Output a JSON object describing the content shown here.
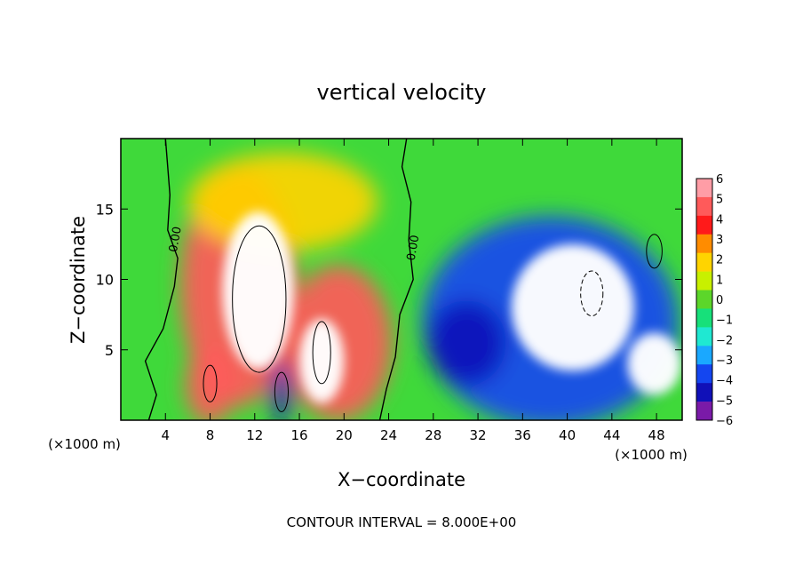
{
  "chart_data": {
    "type": "heatmap",
    "title": "vertical velocity",
    "xlabel": "X−coordinate",
    "ylabel": "Z−coordinate",
    "x_unit_left": "(×1000 m)",
    "x_unit_right": "(×1000 m)",
    "footer": "CONTOUR INTERVAL = 8.000E+00",
    "xlim": [
      0,
      50.3
    ],
    "ylim": [
      0,
      20
    ],
    "x_ticks": [
      4,
      8,
      12,
      16,
      20,
      24,
      28,
      32,
      36,
      40,
      44,
      48
    ],
    "x_tick_labels": [
      "4",
      "8",
      "12",
      "16",
      "20",
      "24",
      "28",
      "32",
      "36",
      "40",
      "44",
      "48"
    ],
    "y_ticks": [
      5,
      10,
      15
    ],
    "y_tick_labels": [
      "5",
      "10",
      "15"
    ],
    "colorbar": {
      "levels": [
        6,
        5,
        4,
        3,
        2,
        1,
        0,
        -1,
        -2,
        -3,
        -4,
        -5,
        -6
      ],
      "labels": [
        "6",
        "5",
        "4",
        "3",
        "2",
        "1",
        "0",
        "−1",
        "−2",
        "−3",
        "−4",
        "−5",
        "−6"
      ],
      "colors": [
        "#ff9da6",
        "#ff5a5a",
        "#ff1a1a",
        "#ff8c00",
        "#ffd400",
        "#c8f000",
        "#5cd62a",
        "#17e07a",
        "#1fe8d2",
        "#1aa8ff",
        "#1446f0",
        "#1010b8",
        "#7a1aa8"
      ]
    },
    "contour_labels": [
      "0.00",
      "0.00"
    ],
    "background_color": "#3fd93a",
    "features": [
      {
        "kind": "updraft",
        "x": 10.5,
        "z": 9.5,
        "rx": 5.2,
        "rz": 8.5,
        "level": 5
      },
      {
        "kind": "updraft",
        "x": 12.3,
        "z": 9.2,
        "rx": 3.2,
        "rz": 5.6,
        "level": 7
      },
      {
        "kind": "updraft",
        "x": 8.0,
        "z": 2.5,
        "rx": 2.2,
        "rz": 2.8,
        "level": 5
      },
      {
        "kind": "updraft",
        "x": 19.5,
        "z": 5.5,
        "rx": 4.8,
        "rz": 5.5,
        "level": 5
      },
      {
        "kind": "updraft",
        "x": 18.0,
        "z": 4.2,
        "rx": 2.0,
        "rz": 3.0,
        "level": 7
      },
      {
        "kind": "updraft",
        "x": 14.5,
        "z": 15.5,
        "rx": 8.5,
        "rz": 3.5,
        "level": 2
      },
      {
        "kind": "downdraft",
        "x": 14.4,
        "z": 2.0,
        "rx": 0.9,
        "rz": 2.3,
        "level": -5
      },
      {
        "kind": "downdraft",
        "x": 38.5,
        "z": 7.0,
        "rx": 11.5,
        "rz": 7.5,
        "level": -4
      },
      {
        "kind": "downdraft",
        "x": 40.5,
        "z": 8.0,
        "rx": 5.5,
        "rz": 4.5,
        "level": -7
      },
      {
        "kind": "downdraft",
        "x": 31.0,
        "z": 5.5,
        "rx": 3.5,
        "rz": 3.0,
        "level": -5
      },
      {
        "kind": "downdraft",
        "x": 47.8,
        "z": 4.0,
        "rx": 2.4,
        "rz": 2.2,
        "level": -7
      }
    ]
  }
}
